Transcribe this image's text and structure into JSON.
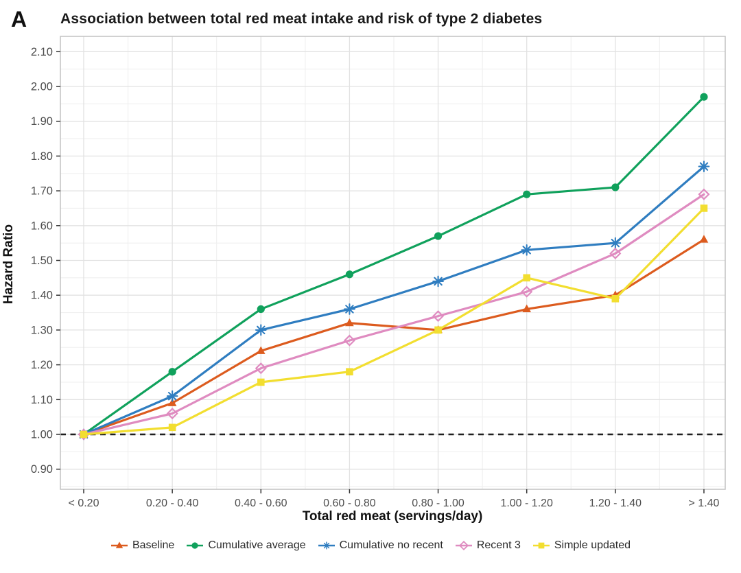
{
  "page": {
    "panel_label": "A"
  },
  "chart_data": {
    "type": "line",
    "title": "Association between total red meat intake and risk of type 2 diabetes",
    "xlabel": "Total red meat (servings/day)",
    "ylabel": "Hazard Ratio",
    "categories": [
      "< 0.20",
      "0.20 - 0.40",
      "0.40 - 0.60",
      "0.60 - 0.80",
      "0.80 - 1.00",
      "1.00 - 1.20",
      "1.20 - 1.40",
      "> 1.40"
    ],
    "y_tick_labels": [
      "0.90",
      "1.00",
      "1.10",
      "1.20",
      "1.30",
      "1.40",
      "1.50",
      "1.60",
      "1.70",
      "1.80",
      "1.90",
      "2.00",
      "2.10"
    ],
    "y_tick_values": [
      0.9,
      1.0,
      1.1,
      1.2,
      1.3,
      1.4,
      1.5,
      1.6,
      1.7,
      1.8,
      1.9,
      2.0,
      2.1
    ],
    "y_minor_values": [
      0.85,
      0.95,
      1.05,
      1.15,
      1.25,
      1.35,
      1.45,
      1.55,
      1.65,
      1.75,
      1.85,
      1.95,
      2.05
    ],
    "ylim": [
      0.845,
      2.145
    ],
    "reference_line": 1.0,
    "grid": true,
    "legend_position": "bottom",
    "series": [
      {
        "name": "Baseline",
        "marker": "triangle",
        "color": "#DC5B1E",
        "values": [
          1.0,
          1.09,
          1.24,
          1.32,
          1.3,
          1.36,
          1.4,
          1.56
        ]
      },
      {
        "name": "Cumulative average",
        "marker": "circle",
        "color": "#10A15C",
        "values": [
          1.0,
          1.18,
          1.36,
          1.46,
          1.57,
          1.69,
          1.71,
          1.97
        ]
      },
      {
        "name": "Cumulative no recent",
        "marker": "asterisk",
        "color": "#2F7DC0",
        "values": [
          1.0,
          1.11,
          1.3,
          1.36,
          1.44,
          1.53,
          1.55,
          1.77
        ]
      },
      {
        "name": "Recent 3",
        "marker": "diamond-open",
        "color": "#DF8BC0",
        "values": [
          1.0,
          1.06,
          1.19,
          1.27,
          1.34,
          1.41,
          1.52,
          1.69
        ]
      },
      {
        "name": "Simple updated",
        "marker": "square",
        "color": "#F2DE30",
        "values": [
          1.0,
          1.02,
          1.15,
          1.18,
          1.3,
          1.45,
          1.39,
          1.65
        ]
      }
    ],
    "colors": {
      "grid_major": "#e2e2e2",
      "grid_minor": "#efefef",
      "panel_border": "#c2c2c2",
      "tick_mark": "#333333",
      "reference": "#1f1f1f"
    }
  }
}
